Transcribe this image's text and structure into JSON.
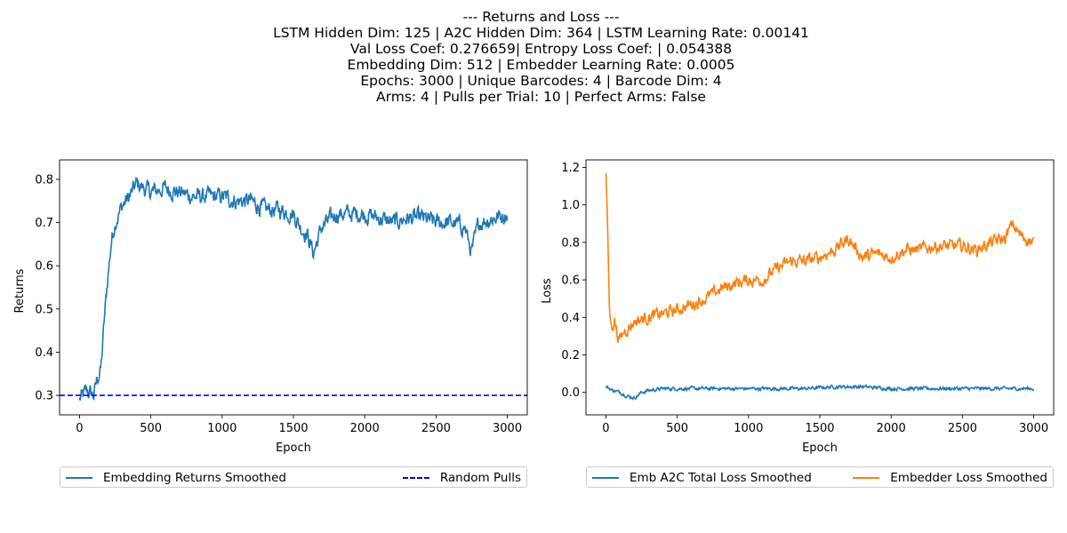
{
  "figure_title": [
    "--- Returns and Loss ---",
    "LSTM Hidden Dim: 125 | A2C Hidden Dim: 364 | LSTM Learning Rate: 0.00141",
    "Val Loss Coef: 0.276659| Entropy Loss Coef: | 0.054388",
    "Embedding Dim: 512 | Embedder Learning Rate: 0.0005",
    "Epochs: 3000 | Unique Barcodes: 4 | Barcode Dim: 4",
    "Arms: 4 | Pulls per Trial: 10 | Perfect Arms: False"
  ],
  "chart_data": [
    {
      "type": "line",
      "xlabel": "Epoch",
      "ylabel": "Returns",
      "xlim": [
        -140,
        3140
      ],
      "ylim": [
        0.255,
        0.845
      ],
      "xticks": [
        0,
        500,
        1000,
        1500,
        2000,
        2500,
        3000
      ],
      "yticks": [
        0.3,
        0.4,
        0.5,
        0.6,
        0.7,
        0.8
      ],
      "ytick_labels": [
        "0.3",
        "0.4",
        "0.5",
        "0.6",
        "0.7",
        "0.8"
      ],
      "grid": false,
      "legend_position": "bottom, below axes",
      "series": [
        {
          "name": "Embedding Returns Smoothed",
          "color": "#1f77b4",
          "style": "solid",
          "x": [
            0,
            50,
            100,
            125,
            150,
            175,
            200,
            225,
            250,
            300,
            350,
            400,
            450,
            500,
            600,
            700,
            800,
            900,
            1000,
            1100,
            1200,
            1300,
            1400,
            1500,
            1550,
            1600,
            1640,
            1700,
            1800,
            1900,
            2000,
            2100,
            2200,
            2300,
            2400,
            2500,
            2600,
            2700,
            2750,
            2800,
            2900,
            3000
          ],
          "y": [
            0.29,
            0.31,
            0.3,
            0.34,
            0.36,
            0.48,
            0.58,
            0.66,
            0.7,
            0.74,
            0.76,
            0.79,
            0.78,
            0.77,
            0.78,
            0.77,
            0.76,
            0.76,
            0.76,
            0.75,
            0.75,
            0.73,
            0.73,
            0.72,
            0.69,
            0.67,
            0.63,
            0.69,
            0.72,
            0.72,
            0.72,
            0.71,
            0.7,
            0.71,
            0.71,
            0.7,
            0.7,
            0.69,
            0.63,
            0.7,
            0.71,
            0.72
          ]
        },
        {
          "name": "Random Pulls",
          "color": "#0000ff",
          "style": "dashed",
          "x": [
            -140,
            3140
          ],
          "y": [
            0.3,
            0.3
          ]
        }
      ]
    },
    {
      "type": "line",
      "xlabel": "Epoch",
      "ylabel": "Loss",
      "xlim": [
        -140,
        3140
      ],
      "ylim": [
        -0.12,
        1.24
      ],
      "xticks": [
        0,
        500,
        1000,
        1500,
        2000,
        2500,
        3000
      ],
      "yticks": [
        0.0,
        0.2,
        0.4,
        0.6,
        0.8,
        1.0,
        1.2
      ],
      "ytick_labels": [
        "0.0",
        "0.2",
        "0.4",
        "0.6",
        "0.8",
        "1.0",
        "1.2"
      ],
      "grid": false,
      "legend_position": "bottom, below axes",
      "series": [
        {
          "name": "Emb A2C Total Loss Smoothed",
          "color": "#1f77b4",
          "style": "solid",
          "x": [
            0,
            50,
            100,
            150,
            200,
            250,
            300,
            400,
            600,
            800,
            1000,
            1200,
            1400,
            1600,
            1800,
            2000,
            2200,
            2400,
            2600,
            2800,
            3000
          ],
          "y": [
            0.03,
            0.01,
            0.0,
            -0.02,
            -0.03,
            0.0,
            0.01,
            0.02,
            0.02,
            0.02,
            0.02,
            0.02,
            0.02,
            0.03,
            0.03,
            0.02,
            0.02,
            0.02,
            0.02,
            0.02,
            0.02
          ]
        },
        {
          "name": "Embedder Loss Smoothed",
          "color": "#ff7f0e",
          "style": "solid",
          "x": [
            0,
            10,
            25,
            40,
            60,
            80,
            100,
            130,
            170,
            200,
            300,
            400,
            500,
            600,
            700,
            800,
            900,
            1000,
            1100,
            1200,
            1300,
            1400,
            1500,
            1600,
            1700,
            1800,
            1900,
            2000,
            2100,
            2200,
            2300,
            2400,
            2500,
            2600,
            2700,
            2800,
            2850,
            2900,
            3000
          ],
          "y": [
            1.17,
            0.95,
            0.43,
            0.34,
            0.39,
            0.31,
            0.28,
            0.33,
            0.35,
            0.38,
            0.4,
            0.42,
            0.44,
            0.47,
            0.5,
            0.55,
            0.58,
            0.6,
            0.6,
            0.66,
            0.7,
            0.7,
            0.72,
            0.76,
            0.82,
            0.72,
            0.74,
            0.72,
            0.76,
            0.76,
            0.78,
            0.78,
            0.78,
            0.76,
            0.8,
            0.82,
            0.9,
            0.84,
            0.8
          ]
        }
      ]
    }
  ]
}
